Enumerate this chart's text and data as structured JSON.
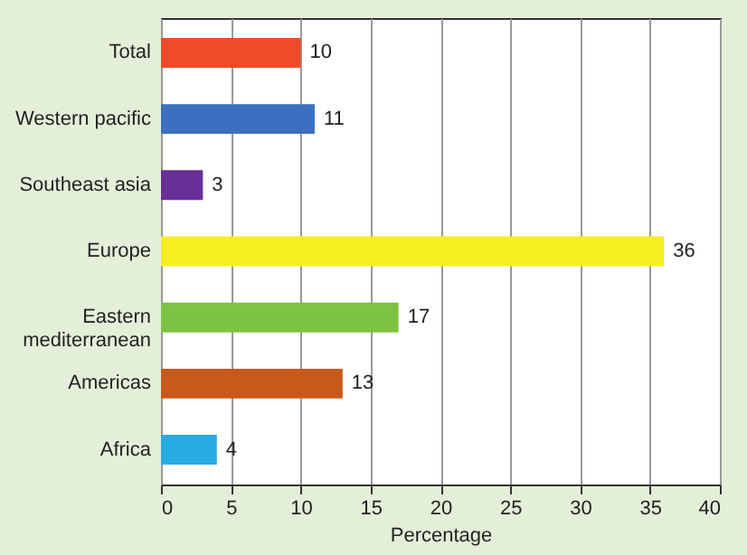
{
  "chart_data": {
    "type": "bar",
    "orientation": "horizontal",
    "xlabel": "Percentage",
    "categories": [
      "Total",
      "Western pacific",
      "Southeast asia",
      "Europe",
      "Eastern mediterranean",
      "Americas",
      "Africa"
    ],
    "values": [
      10,
      11,
      3,
      36,
      17,
      13,
      4
    ],
    "colors": [
      "#f04a28",
      "#3b6fc0",
      "#6b2f98",
      "#f7ee22",
      "#7dc242",
      "#c9581b",
      "#2aaae2"
    ],
    "xlim": [
      0,
      40
    ],
    "xticks": [
      0,
      5,
      10,
      15,
      20,
      25,
      30,
      35,
      40
    ],
    "grid": "x",
    "data_labels": true
  }
}
